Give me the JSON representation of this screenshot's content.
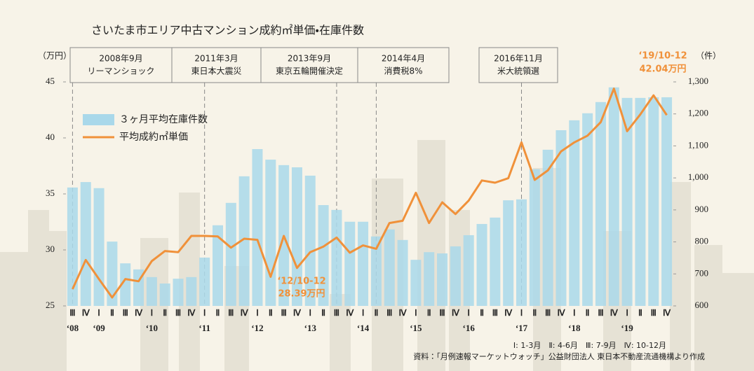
{
  "chart_data": {
    "type": "bar_line",
    "title": "さいたま市エリア中古マンション成約㎡単価・在庫件数",
    "y_label": "（万円）",
    "y2_label": "（件）",
    "categories": [
      "Ⅲ",
      "Ⅳ",
      "Ⅰ",
      "Ⅱ",
      "Ⅲ",
      "Ⅳ",
      "Ⅰ",
      "Ⅱ",
      "Ⅲ",
      "Ⅳ",
      "Ⅰ",
      "Ⅱ",
      "Ⅲ",
      "Ⅳ",
      "Ⅰ",
      "Ⅱ",
      "Ⅲ",
      "Ⅳ",
      "Ⅰ",
      "Ⅱ",
      "Ⅲ",
      "Ⅳ",
      "Ⅰ",
      "Ⅱ",
      "Ⅲ",
      "Ⅳ",
      "Ⅰ",
      "Ⅱ",
      "Ⅲ",
      "Ⅳ",
      "Ⅰ",
      "Ⅱ",
      "Ⅲ",
      "Ⅳ",
      "Ⅰ",
      "Ⅱ",
      "Ⅲ",
      "Ⅳ",
      "Ⅰ",
      "Ⅱ",
      "Ⅲ",
      "Ⅳ",
      "Ⅰ",
      "Ⅱ",
      "Ⅲ",
      "Ⅳ"
    ],
    "years": [
      "‘08",
      null,
      "‘09",
      null,
      null,
      null,
      "‘10",
      null,
      null,
      null,
      "‘11",
      null,
      null,
      null,
      "‘12",
      null,
      null,
      null,
      "‘13",
      null,
      null,
      null,
      "‘14",
      null,
      null,
      null,
      "‘15",
      null,
      null,
      null,
      "‘16",
      null,
      null,
      null,
      "‘17",
      null,
      null,
      null,
      "‘18",
      null,
      null,
      null,
      "‘19",
      null,
      null,
      null
    ],
    "series": [
      {
        "name": "３ヶ月平均在庫件数",
        "type": "bar",
        "axis": "y2",
        "color": "#a9d8ea",
        "values": [
          970,
          987,
          968,
          801,
          733,
          714,
          690,
          670,
          685,
          690,
          751,
          852,
          922,
          1005,
          1090,
          1057,
          1040,
          1033,
          1007,
          915,
          900,
          863,
          863,
          817,
          839,
          806,
          744,
          768,
          764,
          786,
          821,
          856,
          876,
          930,
          933,
          1027,
          1088,
          1149,
          1180,
          1202,
          1237,
          1283,
          1250,
          1250,
          1252,
          1252
        ]
      },
      {
        "name": "平均成約㎡単価",
        "type": "line",
        "color": "#f0913a",
        "values": [
          26.5,
          29.1,
          27.4,
          25.75,
          27.4,
          27.2,
          29.0,
          29.9,
          29.8,
          31.25,
          31.25,
          31.2,
          30.2,
          31.0,
          30.9,
          27.6,
          31.25,
          28.39,
          29.8,
          30.3,
          31.1,
          29.75,
          30.4,
          30.1,
          32.4,
          32.6,
          35.1,
          32.4,
          34.25,
          33.2,
          34.4,
          36.2,
          36.0,
          36.4,
          39.6,
          36.25,
          37.1,
          38.8,
          39.6,
          40.2,
          41.4,
          44.4,
          40.6,
          42.1,
          43.8,
          42.04
        ]
      }
    ],
    "ylim": [
      25,
      45
    ],
    "yticks": [
      25,
      30,
      35,
      40,
      45
    ],
    "y2lim": [
      600,
      1300
    ],
    "y2ticks": [
      600,
      700,
      800,
      900,
      {
        "value": 1000,
        "label": "1,000"
      },
      {
        "value": 1100,
        "label": "1,100"
      },
      {
        "value": 1200,
        "label": "1,200"
      },
      {
        "value": 1300,
        "label": "1,300"
      }
    ],
    "events": [
      {
        "date": "2008年9月",
        "label": "リーマンショック"
      },
      {
        "date": "2011年3月",
        "label": "東日本大震災"
      },
      {
        "date": "2013年9月",
        "label": "東京五輪開催決定"
      },
      {
        "date": "2014年4月",
        "label": "消費税8%"
      },
      {
        "date": "2016年11月",
        "label": "米大統領選"
      }
    ],
    "annotations": [
      {
        "text": "‘12/10-12"
      },
      {
        "text": "28.39万円"
      },
      {
        "text": "‘19/10-12"
      },
      {
        "text": "42.04万円"
      }
    ],
    "footnotes": [
      "Ⅰ: 1-3月　Ⅱ: 4-6月　Ⅲ: 7-9月　Ⅳ: 10-12月",
      "資料：「月例速報マーケットウォッチ」公益財団法人 東日本不動産流通機構より作成"
    ]
  }
}
